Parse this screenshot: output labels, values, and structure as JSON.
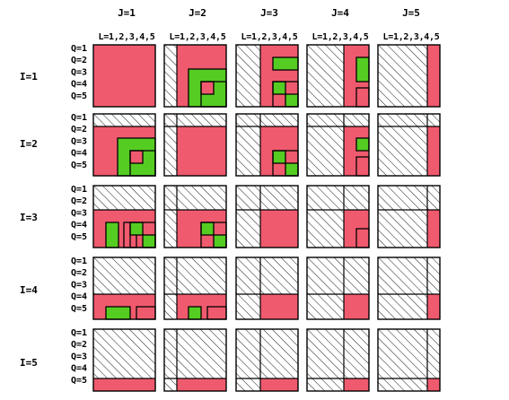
{
  "column_headers": [
    "J=1",
    "J=2",
    "J=3",
    "J=4",
    "J=5"
  ],
  "l_label": "L=1,2,3,4,5",
  "row_labels": [
    "I=1",
    "I=2",
    "I=3",
    "I=4",
    "I=5"
  ],
  "q_labels": [
    "Q=1",
    "Q=2",
    "Q=3",
    "Q=4",
    "Q=5"
  ],
  "colors": {
    "fill": "#F05A6E",
    "highlight": "#55CC22",
    "line": "#000000",
    "hatch": "#000000"
  }
}
